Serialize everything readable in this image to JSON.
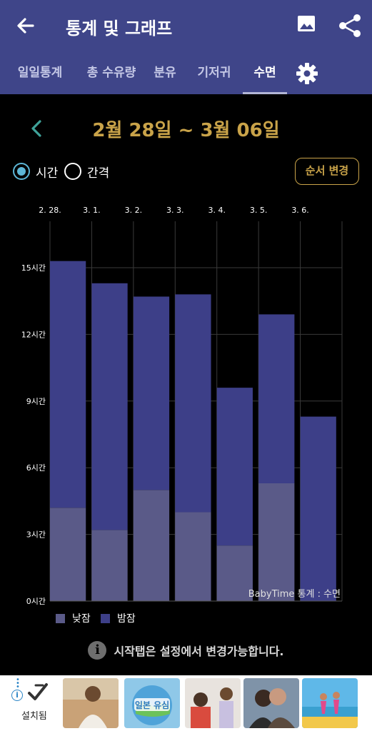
{
  "header": {
    "title": "통계 및 그래프",
    "back_icon": "arrow-left-icon",
    "image_icon": "image-icon",
    "share_icon": "share-icon"
  },
  "tabs": [
    {
      "label": "일일통계"
    },
    {
      "label": "총 수유량"
    },
    {
      "label": "분유"
    },
    {
      "label": "기저귀"
    },
    {
      "label": "수면",
      "active": true
    }
  ],
  "date_range": "2월 28일 ~ 3월 06일",
  "mode": {
    "option_time": "시간",
    "option_interval": "간격",
    "selected": "시간"
  },
  "order_button": "순서 변경",
  "chart_data": {
    "type": "bar",
    "stacked": true,
    "categories": [
      "2. 28.",
      "3. 1.",
      "3. 2.",
      "3. 3.",
      "3. 4.",
      "3. 5.",
      "3. 6."
    ],
    "series": [
      {
        "name": "낮잠",
        "values": [
          4.2,
          3.2,
          5.0,
          4.0,
          2.5,
          5.3,
          0
        ],
        "color": "#5a5a88"
      },
      {
        "name": "밤잠",
        "values": [
          11.1,
          11.1,
          8.7,
          9.8,
          7.1,
          7.6,
          8.3
        ],
        "color": "#3d3f88"
      }
    ],
    "y_ticks": [
      "0시간",
      "3시간",
      "6시간",
      "9시간",
      "12시간",
      "15시간"
    ],
    "ylim": [
      0,
      15
    ],
    "grid": true,
    "watermark": "BabyTime 통계 : 수면",
    "legend_position": "bottom-left"
  },
  "info_text": "시작탭은 설정에서 변경가능합니다.",
  "ad": {
    "installed_label": "설치됨",
    "thumb_label": "일본 유심"
  },
  "colors": {
    "appbar": "#3f4589",
    "accent_gold": "#c9a349",
    "radio_on": "#5db6d6"
  }
}
